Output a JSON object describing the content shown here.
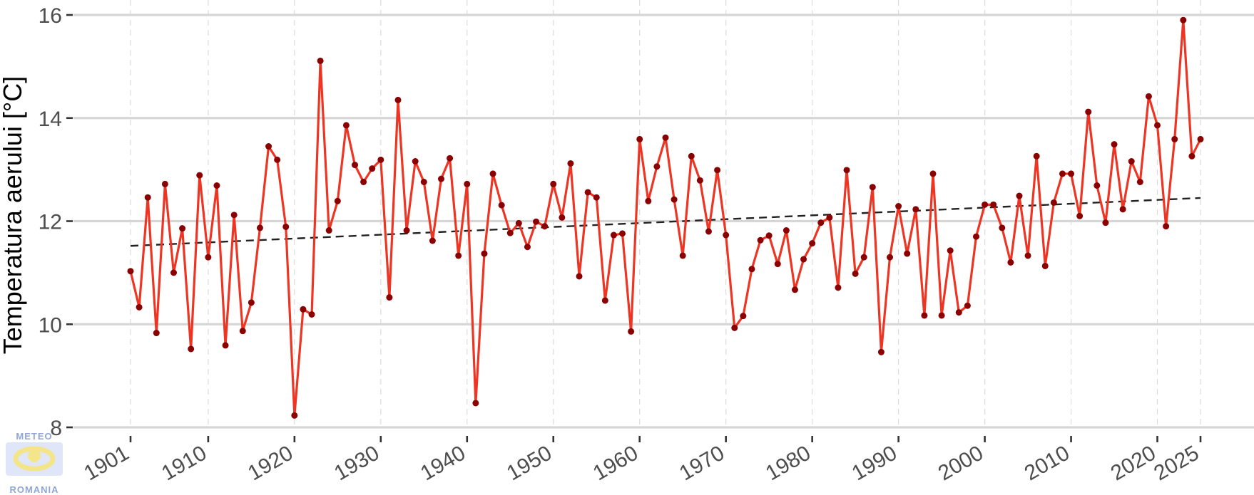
{
  "chart_data": {
    "type": "line",
    "title": "",
    "xlabel": "",
    "ylabel": "Temperatura aerului [°C]",
    "xlim": [
      1901,
      2025
    ],
    "ylim": [
      8,
      16
    ],
    "x_ticks": [
      1901,
      1910,
      1920,
      1930,
      1940,
      1950,
      1960,
      1970,
      1980,
      1990,
      2000,
      2010,
      2020,
      2025
    ],
    "y_ticks": [
      8,
      10,
      12,
      14,
      16
    ],
    "grid": true,
    "series": [
      {
        "x": [
          1901,
          1902,
          1903,
          1904,
          1905,
          1906,
          1907,
          1908,
          1909,
          1910,
          1911,
          1912,
          1913,
          1914,
          1915,
          1916,
          1917,
          1918,
          1919,
          1920,
          1921,
          1922,
          1923,
          1924,
          1925,
          1926,
          1927,
          1928,
          1929,
          1930,
          1931,
          1932,
          1933,
          1934,
          1935,
          1936,
          1937,
          1938,
          1939,
          1940,
          1941,
          1942,
          1943,
          1944,
          1945,
          1946,
          1947,
          1948,
          1949,
          1950,
          1951,
          1952,
          1953,
          1954,
          1955,
          1956,
          1957,
          1958,
          1959,
          1960,
          1961,
          1962,
          1963,
          1964,
          1965,
          1966,
          1967,
          1968,
          1969,
          1970,
          1971,
          1972,
          1973,
          1974,
          1975,
          1976,
          1977,
          1978,
          1979,
          1980,
          1981,
          1982,
          1983,
          1984,
          1985,
          1986,
          1987,
          1988,
          1989,
          1990,
          1991,
          1992,
          1993,
          1994,
          1995,
          1996,
          1997,
          1998,
          1999,
          2000,
          2001,
          2002,
          2003,
          2004,
          2005,
          2006,
          2007,
          2008,
          2009,
          2010,
          2011,
          2012,
          2013,
          2014,
          2015,
          2016,
          2017,
          2018,
          2019,
          2020,
          2021,
          2022,
          2023,
          2024,
          2025
        ],
        "values": [
          11.03,
          10.33,
          12.46,
          9.83,
          12.72,
          11.0,
          11.86,
          9.52,
          12.89,
          11.3,
          12.69,
          9.59,
          12.12,
          9.87,
          10.42,
          11.87,
          13.45,
          13.19,
          11.89,
          8.23,
          10.29,
          10.19,
          15.11,
          11.82,
          12.39,
          13.86,
          13.09,
          12.76,
          13.02,
          13.19,
          10.52,
          14.35,
          11.82,
          13.16,
          12.76,
          11.62,
          12.82,
          13.22,
          11.33,
          12.72,
          8.47,
          11.37,
          12.92,
          12.31,
          11.77,
          11.96,
          11.5,
          11.99,
          11.9,
          12.72,
          12.07,
          13.12,
          10.93,
          12.56,
          12.46,
          10.46,
          11.73,
          11.76,
          9.86,
          13.59,
          12.39,
          13.06,
          13.62,
          12.42,
          11.33,
          13.26,
          12.79,
          11.8,
          12.99,
          11.73,
          9.93,
          10.16,
          11.07,
          11.63,
          11.72,
          11.17,
          11.82,
          10.67,
          11.26,
          11.57,
          11.97,
          12.07,
          10.71,
          12.99,
          10.98,
          11.3,
          12.66,
          9.46,
          11.3,
          12.29,
          11.37,
          12.23,
          10.17,
          12.92,
          10.17,
          11.43,
          10.23,
          10.36,
          11.7,
          12.32,
          12.32,
          11.87,
          11.2,
          12.49,
          11.33,
          13.26,
          11.13,
          12.36,
          12.92,
          12.92,
          12.1,
          14.12,
          12.69,
          11.97,
          13.49,
          12.23,
          13.16,
          12.76,
          14.42,
          13.86,
          11.9,
          13.59,
          15.9,
          13.26,
          13.59
        ],
        "color": "#ee3524",
        "marker_color": "#8b0000"
      },
      {
        "x": [
          1901,
          2025
        ],
        "values": [
          11.52,
          12.45
        ],
        "style": "dashed",
        "color": "#222222"
      }
    ]
  },
  "logo": {
    "top": "METEO",
    "bottom": "ROMANIA"
  }
}
